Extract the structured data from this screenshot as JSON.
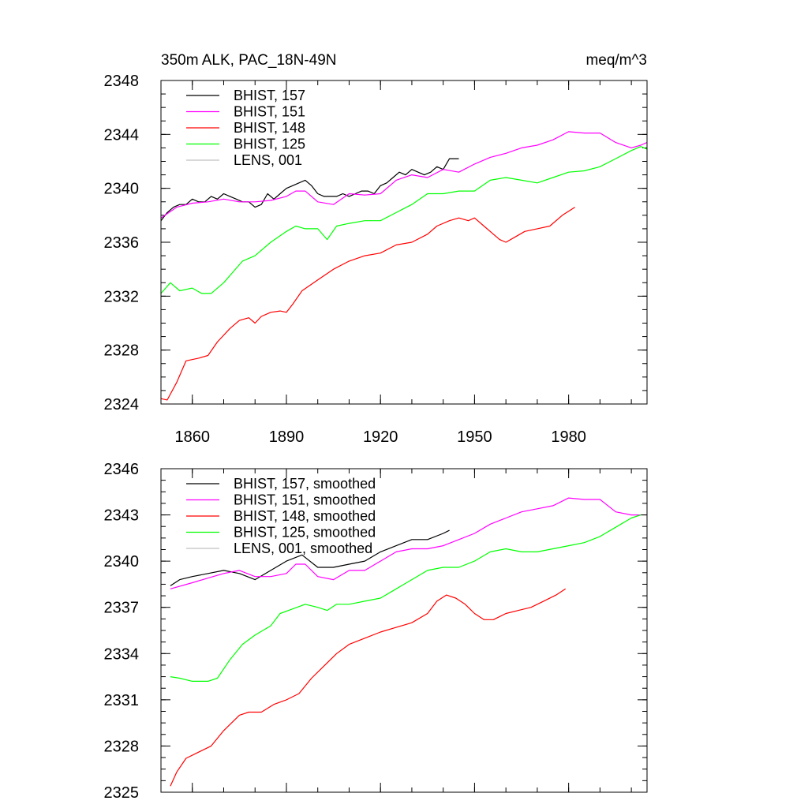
{
  "chart_data": [
    {
      "type": "line",
      "title_left": "350m ALK, PAC_18N-49N",
      "title_right": "meq/m^3",
      "xlabel": "",
      "ylabel": "",
      "xlim": [
        1850,
        2005
      ],
      "ylim": [
        2324,
        2348
      ],
      "xticks": [
        1860,
        1890,
        1920,
        1950,
        1980
      ],
      "yticks": [
        2324,
        2328,
        2332,
        2336,
        2340,
        2344,
        2348
      ],
      "show_x_tick_labels": true,
      "legend_position": "top-left",
      "series": [
        {
          "name": "BHIST, 157",
          "color": "#000000",
          "x": [
            1850,
            1852,
            1854,
            1856,
            1858,
            1860,
            1862,
            1864,
            1866,
            1868,
            1870,
            1872,
            1874,
            1876,
            1878,
            1880,
            1882,
            1884,
            1886,
            1888,
            1890,
            1892,
            1894,
            1896,
            1898,
            1900,
            1902,
            1904,
            1906,
            1908,
            1910,
            1912,
            1914,
            1916,
            1918,
            1920,
            1922,
            1924,
            1926,
            1928,
            1930,
            1932,
            1934,
            1936,
            1938,
            1940,
            1942,
            1945
          ],
          "y": [
            2337.6,
            2338.2,
            2338.6,
            2338.8,
            2338.8,
            2339.2,
            2339.0,
            2339.0,
            2339.4,
            2339.2,
            2339.6,
            2339.4,
            2339.2,
            2339.0,
            2339.0,
            2338.6,
            2338.8,
            2339.6,
            2339.2,
            2339.6,
            2340.0,
            2340.2,
            2340.4,
            2340.6,
            2340.2,
            2339.6,
            2339.4,
            2339.4,
            2339.4,
            2339.6,
            2339.4,
            2339.6,
            2339.8,
            2339.8,
            2339.6,
            2340.2,
            2340.4,
            2340.8,
            2341.2,
            2341.0,
            2341.4,
            2341.2,
            2341.0,
            2341.2,
            2341.6,
            2341.4,
            2342.2,
            2342.2
          ]
        },
        {
          "name": "BHIST, 151",
          "color": "#ff00ff",
          "x": [
            1850,
            1855,
            1860,
            1865,
            1870,
            1875,
            1880,
            1885,
            1890,
            1893,
            1896,
            1900,
            1905,
            1910,
            1915,
            1920,
            1925,
            1930,
            1935,
            1940,
            1945,
            1950,
            1955,
            1960,
            1965,
            1970,
            1975,
            1980,
            1985,
            1990,
            1995,
            2000,
            2003,
            2005
          ],
          "y": [
            2337.8,
            2338.6,
            2338.9,
            2339.0,
            2339.2,
            2339.0,
            2339.0,
            2339.1,
            2339.4,
            2339.8,
            2339.8,
            2339.0,
            2338.8,
            2339.6,
            2339.5,
            2339.6,
            2340.6,
            2341.0,
            2340.8,
            2341.4,
            2341.2,
            2341.8,
            2342.3,
            2342.6,
            2343.0,
            2343.2,
            2343.6,
            2344.2,
            2344.1,
            2344.1,
            2343.4,
            2343.0,
            2343.2,
            2343.4
          ]
        },
        {
          "name": "BHIST, 148",
          "color": "#ff0000",
          "x": [
            1850,
            1852,
            1855,
            1858,
            1862,
            1865,
            1868,
            1872,
            1875,
            1878,
            1880,
            1882,
            1885,
            1888,
            1890,
            1892,
            1895,
            1900,
            1905,
            1910,
            1915,
            1920,
            1925,
            1930,
            1935,
            1938,
            1942,
            1945,
            1948,
            1950,
            1953,
            1956,
            1958,
            1960,
            1963,
            1966,
            1970,
            1974,
            1978,
            1982
          ],
          "y": [
            2324.4,
            2324.3,
            2325.6,
            2327.2,
            2327.4,
            2327.6,
            2328.6,
            2329.6,
            2330.2,
            2330.4,
            2330.0,
            2330.5,
            2330.8,
            2330.9,
            2330.8,
            2331.4,
            2332.4,
            2333.2,
            2334.0,
            2334.6,
            2335.0,
            2335.2,
            2335.8,
            2336.0,
            2336.6,
            2337.2,
            2337.6,
            2337.8,
            2337.6,
            2337.8,
            2337.2,
            2336.6,
            2336.2,
            2336.0,
            2336.4,
            2336.8,
            2337.0,
            2337.2,
            2338.0,
            2338.6
          ]
        },
        {
          "name": "BHIST, 125",
          "color": "#00ff00",
          "x": [
            1850,
            1853,
            1856,
            1860,
            1863,
            1866,
            1870,
            1873,
            1876,
            1880,
            1885,
            1890,
            1893,
            1896,
            1900,
            1903,
            1906,
            1910,
            1915,
            1920,
            1925,
            1930,
            1935,
            1940,
            1945,
            1950,
            1955,
            1960,
            1965,
            1970,
            1975,
            1980,
            1985,
            1990,
            1995,
            2000,
            2003,
            2005
          ],
          "y": [
            2332.2,
            2333.0,
            2332.4,
            2332.6,
            2332.2,
            2332.2,
            2333.0,
            2333.8,
            2334.6,
            2335.0,
            2336.0,
            2336.8,
            2337.2,
            2337.0,
            2337.0,
            2336.2,
            2337.2,
            2337.4,
            2337.6,
            2337.6,
            2338.2,
            2338.8,
            2339.6,
            2339.6,
            2339.8,
            2339.8,
            2340.6,
            2340.8,
            2340.6,
            2340.4,
            2340.8,
            2341.2,
            2341.3,
            2341.6,
            2342.2,
            2342.8,
            2343.1,
            2342.9
          ]
        },
        {
          "name": "LENS, 001",
          "color": "#c0c0c0",
          "x": [],
          "y": []
        }
      ]
    },
    {
      "type": "line",
      "title_left": "",
      "title_right": "",
      "xlabel": "",
      "ylabel": "",
      "xlim": [
        1850,
        2005
      ],
      "ylim": [
        2325,
        2346
      ],
      "xticks": [
        1860,
        1890,
        1920,
        1950,
        1980
      ],
      "yticks": [
        2325,
        2328,
        2331,
        2334,
        2337,
        2340,
        2343,
        2346
      ],
      "show_x_tick_labels": false,
      "legend_position": "top-left",
      "series": [
        {
          "name": "BHIST, 157, smoothed",
          "color": "#000000",
          "x": [
            1853,
            1856,
            1860,
            1865,
            1870,
            1875,
            1880,
            1885,
            1890,
            1895,
            1900,
            1905,
            1910,
            1915,
            1920,
            1925,
            1930,
            1935,
            1940,
            1942
          ],
          "y": [
            2338.4,
            2338.8,
            2339.0,
            2339.2,
            2339.4,
            2339.2,
            2338.8,
            2339.4,
            2340.0,
            2340.4,
            2339.6,
            2339.6,
            2339.8,
            2340.0,
            2340.6,
            2341.0,
            2341.4,
            2341.4,
            2341.8,
            2342.0
          ]
        },
        {
          "name": "BHIST, 151, smoothed",
          "color": "#ff00ff",
          "x": [
            1853,
            1860,
            1865,
            1870,
            1875,
            1880,
            1885,
            1890,
            1893,
            1896,
            1900,
            1905,
            1910,
            1915,
            1920,
            1925,
            1930,
            1935,
            1940,
            1945,
            1950,
            1955,
            1960,
            1965,
            1970,
            1975,
            1980,
            1985,
            1990,
            1995,
            2000,
            2003
          ],
          "y": [
            2338.2,
            2338.6,
            2338.9,
            2339.2,
            2339.4,
            2339.0,
            2339.0,
            2339.2,
            2339.8,
            2339.8,
            2339.0,
            2338.8,
            2339.4,
            2339.4,
            2340.0,
            2340.6,
            2340.8,
            2340.8,
            2341.0,
            2341.4,
            2341.8,
            2342.4,
            2342.8,
            2343.2,
            2343.4,
            2343.6,
            2344.1,
            2344.0,
            2344.0,
            2343.2,
            2343.0,
            2343.0
          ]
        },
        {
          "name": "BHIST, 148, smoothed",
          "color": "#ff0000",
          "x": [
            1853,
            1855,
            1858,
            1862,
            1866,
            1870,
            1875,
            1878,
            1882,
            1886,
            1890,
            1894,
            1898,
            1902,
            1906,
            1910,
            1915,
            1920,
            1925,
            1930,
            1935,
            1938,
            1941,
            1944,
            1947,
            1950,
            1953,
            1956,
            1960,
            1964,
            1968,
            1972,
            1976,
            1979
          ],
          "y": [
            2325.4,
            2326.3,
            2327.2,
            2327.6,
            2328.0,
            2329.0,
            2330.0,
            2330.2,
            2330.2,
            2330.7,
            2331.0,
            2331.4,
            2332.4,
            2333.2,
            2334.0,
            2334.6,
            2335.0,
            2335.4,
            2335.7,
            2336.0,
            2336.6,
            2337.4,
            2337.8,
            2337.6,
            2337.2,
            2336.6,
            2336.2,
            2336.2,
            2336.6,
            2336.8,
            2337.0,
            2337.4,
            2337.8,
            2338.2
          ]
        },
        {
          "name": "BHIST, 125, smoothed",
          "color": "#00ff00",
          "x": [
            1853,
            1856,
            1860,
            1865,
            1868,
            1872,
            1876,
            1880,
            1885,
            1888,
            1892,
            1896,
            1900,
            1903,
            1906,
            1910,
            1915,
            1920,
            1925,
            1930,
            1935,
            1940,
            1945,
            1950,
            1955,
            1960,
            1965,
            1970,
            1975,
            1980,
            1985,
            1990,
            1995,
            2000,
            2003
          ],
          "y": [
            2332.5,
            2332.4,
            2332.2,
            2332.2,
            2332.4,
            2333.6,
            2334.6,
            2335.2,
            2335.8,
            2336.6,
            2336.9,
            2337.2,
            2337.0,
            2336.8,
            2337.2,
            2337.2,
            2337.4,
            2337.6,
            2338.2,
            2338.8,
            2339.4,
            2339.6,
            2339.6,
            2340.0,
            2340.6,
            2340.8,
            2340.6,
            2340.6,
            2340.8,
            2341.0,
            2341.2,
            2341.6,
            2342.2,
            2342.8,
            2343.0
          ]
        },
        {
          "name": "LENS, 001, smoothed",
          "color": "#c0c0c0",
          "x": [],
          "y": []
        }
      ]
    }
  ]
}
